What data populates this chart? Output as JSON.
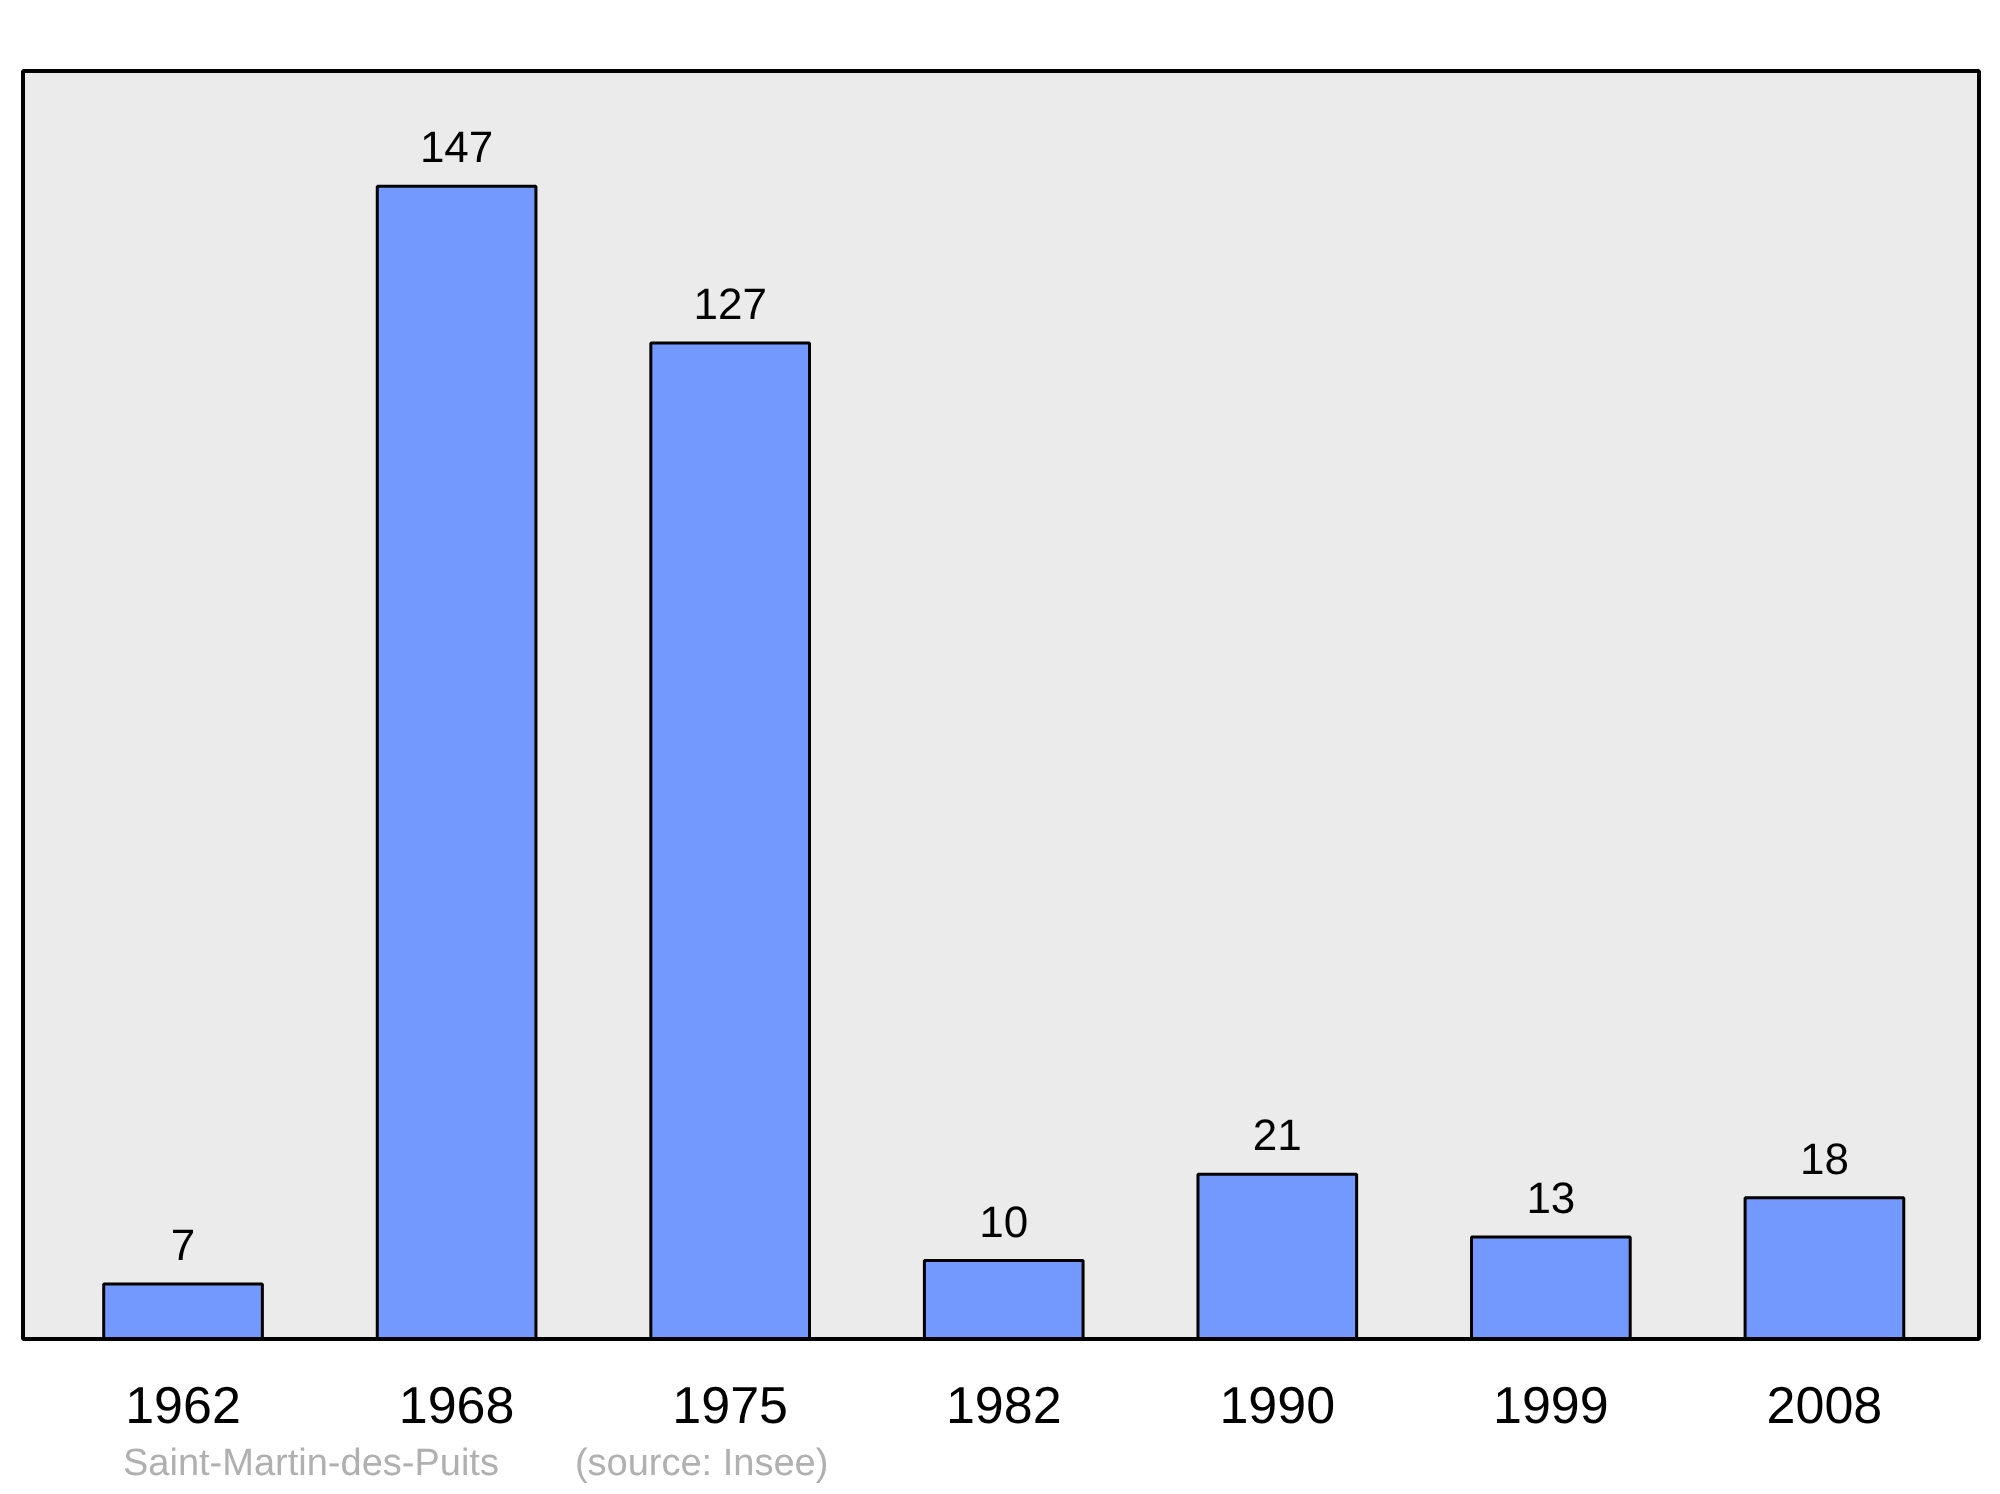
{
  "chart_data": {
    "type": "bar",
    "categories": [
      "1962",
      "1968",
      "1975",
      "1982",
      "1990",
      "1999",
      "2008"
    ],
    "values": [
      7,
      147,
      127,
      10,
      21,
      13,
      18
    ],
    "color": "#7399ff",
    "data_labels": true,
    "tick_labels": "x",
    "grid": false,
    "annotations": [
      "Saint-Martin-des-Puits",
      "(source: Insee)"
    ]
  }
}
